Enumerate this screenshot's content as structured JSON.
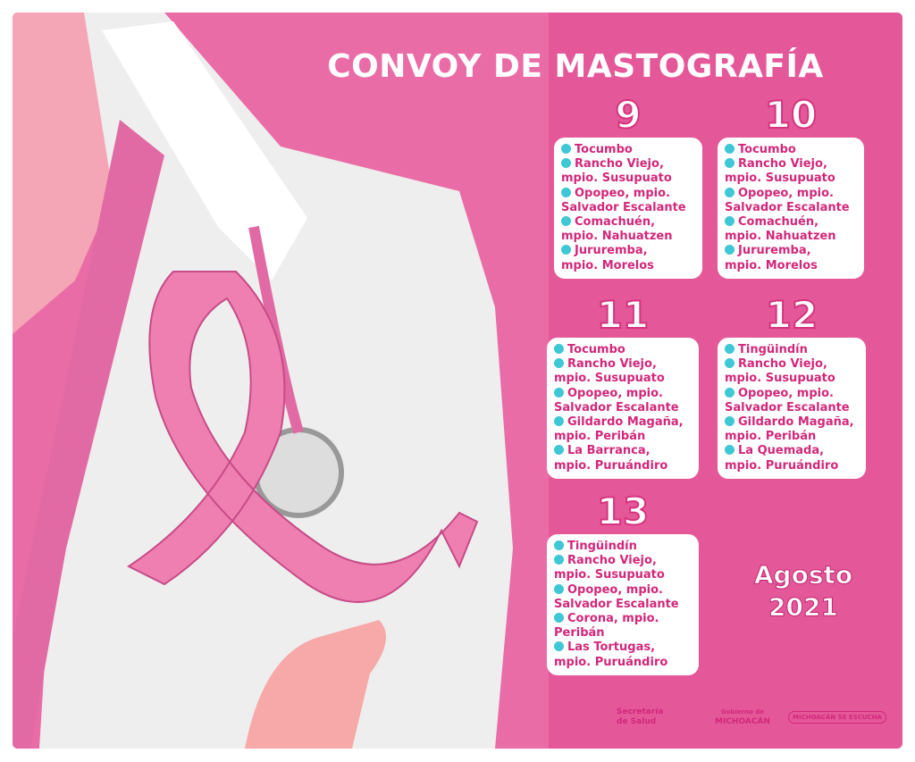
{
  "header": {
    "title": "CONVOY DE MASTOGRAFÍA"
  },
  "days": [
    {
      "day": "9",
      "entries": [
        [
          "Tocumbo"
        ],
        [
          "Rancho Viejo,",
          "mpio. Susupuato"
        ],
        [
          "Opopeo, mpio.",
          "Salvador Escalante"
        ],
        [
          "Comachuén,",
          "mpio. Nahuatzen"
        ],
        [
          "Jururemba,",
          "mpio. Morelos"
        ]
      ]
    },
    {
      "day": "10",
      "entries": [
        [
          "Tocumbo"
        ],
        [
          "Rancho Viejo,",
          "mpio. Susupuato"
        ],
        [
          "Opopeo, mpio.",
          "Salvador Escalante"
        ],
        [
          "Comachuén,",
          "mpio. Nahuatzen"
        ],
        [
          "Jururemba,",
          "mpio. Morelos"
        ]
      ]
    },
    {
      "day": "11",
      "entries": [
        [
          "Tocumbo"
        ],
        [
          "Rancho Viejo,",
          "mpio. Susupuato"
        ],
        [
          "Opopeo, mpio.",
          "Salvador Escalante"
        ],
        [
          "Gildardo Magaña,",
          "mpio. Peribán"
        ],
        [
          "La Barranca,",
          "mpio. Puruándiro"
        ]
      ]
    },
    {
      "day": "12",
      "entries": [
        [
          "Tingüindín"
        ],
        [
          "Rancho Viejo,",
          "mpio. Susupuato"
        ],
        [
          "Opopeo, mpio.",
          "Salvador Escalante"
        ],
        [
          "Gildardo Magaña,",
          "mpio. Peribán"
        ],
        [
          "La Quemada,",
          "mpio. Puruándiro"
        ]
      ]
    },
    {
      "day": "13",
      "entries": [
        [
          "Tingüindín"
        ],
        [
          "Rancho Viejo,",
          "mpio. Susupuato"
        ],
        [
          "Opopeo, mpio.",
          "Salvador Escalante"
        ],
        [
          "Corona, mpio.",
          "Peribán"
        ],
        [
          "Las Tortugas,",
          "mpio. Puruándiro"
        ]
      ]
    }
  ],
  "date": {
    "month": "Agosto",
    "year": "2021"
  },
  "footer": {
    "logo1_line1": "Secretaría",
    "logo1_line2": "de Salud",
    "logo2_line1": "Gobierno de",
    "logo2_line2": "MICHOACÁN",
    "logo3": "MICHOACÁN SE ESCUCHA"
  }
}
